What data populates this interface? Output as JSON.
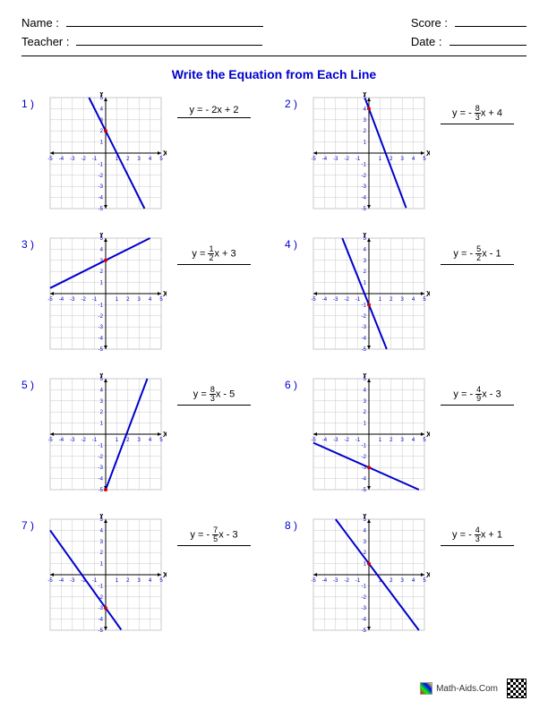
{
  "header": {
    "name_label": "Name :",
    "teacher_label": "Teacher :",
    "score_label": "Score :",
    "date_label": "Date :"
  },
  "title": "Write the Equation from Each Line",
  "graph": {
    "size": 124,
    "range": 5,
    "grid_color": "#c8c8c8",
    "axis_color": "#000000",
    "tick_color": "#0000cc",
    "line_color": "#0000cc",
    "line_width": 2,
    "background": "#ffffff",
    "tick_fontsize": 6
  },
  "problems": [
    {
      "num": "1 )",
      "slope_n": null,
      "slope_d": null,
      "slope_s": "- 2",
      "intercept": "+ 2",
      "m": -2,
      "b": 2
    },
    {
      "num": "2 )",
      "slope_n": "8",
      "slope_d": "3",
      "slope_sign": "- ",
      "intercept": "+ 4",
      "m": -2.6667,
      "b": 4
    },
    {
      "num": "3 )",
      "slope_n": "1",
      "slope_d": "2",
      "slope_sign": "",
      "intercept": "+ 3",
      "m": 0.5,
      "b": 3
    },
    {
      "num": "4 )",
      "slope_n": "5",
      "slope_d": "2",
      "slope_sign": "- ",
      "intercept": "- 1",
      "m": -2.5,
      "b": -1
    },
    {
      "num": "5 )",
      "slope_n": "8",
      "slope_d": "3",
      "slope_sign": "",
      "intercept": "- 5",
      "m": 2.6667,
      "b": -5
    },
    {
      "num": "6 )",
      "slope_n": "4",
      "slope_d": "9",
      "slope_sign": "- ",
      "intercept": "- 3",
      "m": -0.4444,
      "b": -3
    },
    {
      "num": "7 )",
      "slope_n": "7",
      "slope_d": "5",
      "slope_sign": "- ",
      "intercept": "- 3",
      "m": -1.4,
      "b": -3
    },
    {
      "num": "8 )",
      "slope_n": "4",
      "slope_d": "3",
      "slope_sign": "- ",
      "intercept": "+ 1",
      "m": -1.3333,
      "b": 1
    }
  ],
  "footer": {
    "site": "Math-Aids.Com"
  }
}
